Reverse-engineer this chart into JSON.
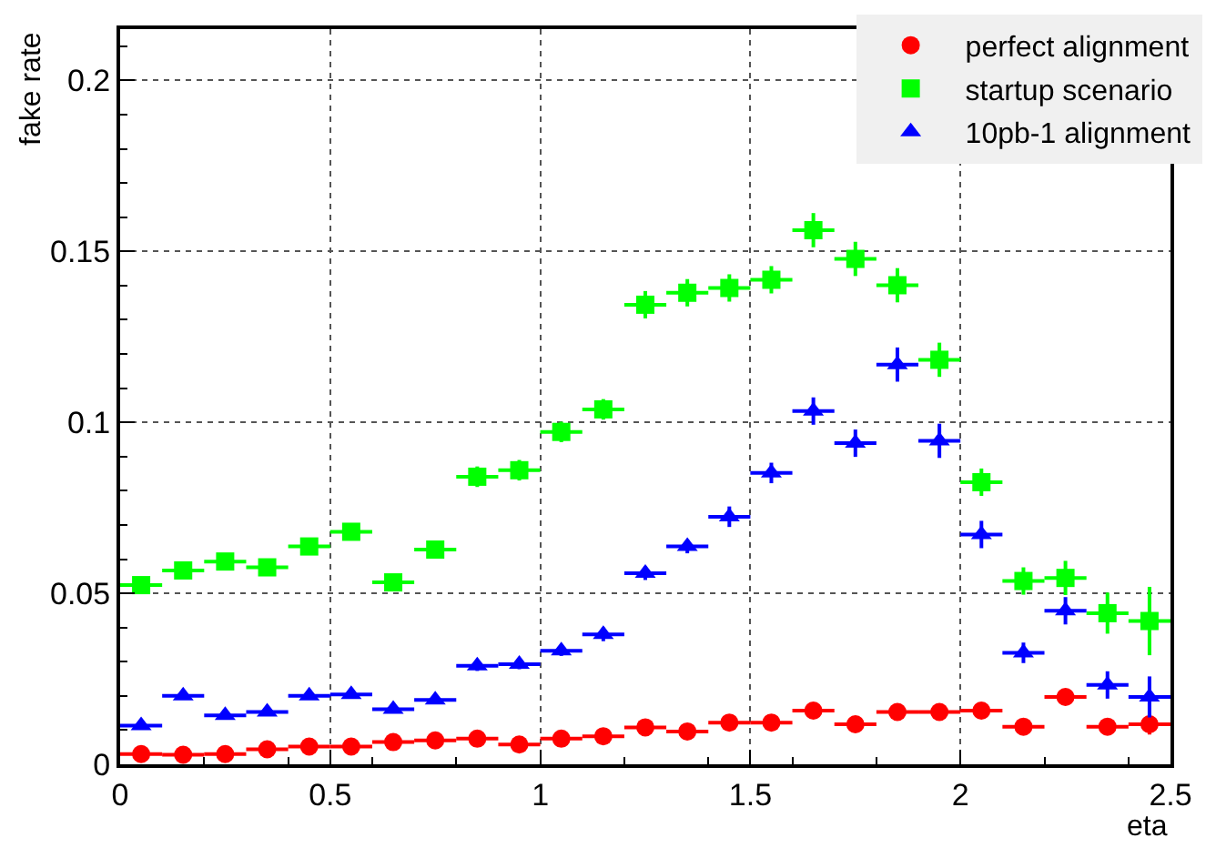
{
  "chart_data": {
    "type": "scatter",
    "xlabel": "eta",
    "ylabel": "fake rate",
    "x": [
      0.05,
      0.15,
      0.25,
      0.35,
      0.45,
      0.55,
      0.65,
      0.75,
      0.85,
      0.95,
      1.05,
      1.15,
      1.25,
      1.35,
      1.45,
      1.55,
      1.65,
      1.75,
      1.85,
      1.95,
      2.05,
      2.15,
      2.25,
      2.35,
      2.45
    ],
    "series": [
      {
        "name": "perfect alignment",
        "color": "#ff0000",
        "marker": "circle",
        "values": [
          0.003,
          0.0028,
          0.003,
          0.0044,
          0.0052,
          0.0052,
          0.0065,
          0.007,
          0.0075,
          0.0058,
          0.0075,
          0.0082,
          0.0108,
          0.0096,
          0.0122,
          0.0122,
          0.0157,
          0.0117,
          0.0153,
          0.0153,
          0.0157,
          0.011,
          0.0197,
          0.011,
          0.0117
        ],
        "errors": [
          0.001,
          0.001,
          0.001,
          0.001,
          0.001,
          0.001,
          0.001,
          0.001,
          0.001,
          0.001,
          0.001,
          0.001,
          0.001,
          0.001,
          0.001,
          0.001,
          0.001,
          0.001,
          0.001,
          0.001,
          0.001,
          0.001,
          0.002,
          0.001,
          0.003
        ],
        "xerrors": [
          0.05,
          0.05,
          0.05,
          0.05,
          0.05,
          0.05,
          0.05,
          0.05,
          0.05,
          0.05,
          0.05,
          0.05,
          0.05,
          0.05,
          0.05,
          0.05,
          0.05,
          0.05,
          0.05,
          0.05,
          0.05,
          0.05,
          0.05,
          0.05,
          0.05
        ]
      },
      {
        "name": "startup scenario",
        "color": "#00ff00",
        "marker": "square",
        "values": [
          0.0524,
          0.0567,
          0.0593,
          0.0576,
          0.0637,
          0.068,
          0.0532,
          0.0628,
          0.0841,
          0.086,
          0.0972,
          0.1038,
          0.1344,
          0.1379,
          0.1393,
          0.1417,
          0.1562,
          0.1478,
          0.1401,
          0.1183,
          0.0825,
          0.0536,
          0.0545,
          0.0442,
          0.0419
        ],
        "errors": [
          0.002,
          0.002,
          0.002,
          0.002,
          0.002,
          0.002,
          0.002,
          0.002,
          0.003,
          0.003,
          0.003,
          0.003,
          0.004,
          0.004,
          0.004,
          0.004,
          0.005,
          0.005,
          0.005,
          0.005,
          0.004,
          0.004,
          0.005,
          0.006,
          0.01
        ],
        "xerrors": [
          0.05,
          0.05,
          0.05,
          0.05,
          0.05,
          0.05,
          0.05,
          0.05,
          0.05,
          0.05,
          0.05,
          0.05,
          0.05,
          0.05,
          0.05,
          0.05,
          0.05,
          0.05,
          0.05,
          0.05,
          0.05,
          0.05,
          0.05,
          0.05,
          0.05
        ]
      },
      {
        "name": "10pb-1 alignment",
        "color": "#0000ff",
        "marker": "triangle",
        "values": [
          0.0113,
          0.02,
          0.0143,
          0.0153,
          0.02,
          0.0204,
          0.0161,
          0.0188,
          0.0288,
          0.0293,
          0.0332,
          0.038,
          0.0559,
          0.0637,
          0.0724,
          0.0852,
          0.1033,
          0.0939,
          0.1169,
          0.0946,
          0.0672,
          0.0326,
          0.0449,
          0.0232,
          0.0197
        ],
        "errors": [
          0.001,
          0.001,
          0.001,
          0.001,
          0.001,
          0.001,
          0.001,
          0.001,
          0.0015,
          0.0015,
          0.0015,
          0.002,
          0.002,
          0.002,
          0.003,
          0.003,
          0.004,
          0.004,
          0.005,
          0.005,
          0.004,
          0.003,
          0.004,
          0.004,
          0.006
        ],
        "xerrors": [
          0.05,
          0.05,
          0.05,
          0.05,
          0.05,
          0.05,
          0.05,
          0.05,
          0.05,
          0.05,
          0.05,
          0.05,
          0.05,
          0.05,
          0.05,
          0.05,
          0.05,
          0.05,
          0.05,
          0.05,
          0.05,
          0.05,
          0.05,
          0.05,
          0.05
        ]
      }
    ],
    "xlim": [
      0,
      2.5
    ],
    "xticks": [
      0,
      0.5,
      1,
      1.5,
      2,
      2.5
    ],
    "ylim": [
      0,
      0.215
    ],
    "yticks": [
      0,
      0.05,
      0.1,
      0.15,
      0.2
    ],
    "grid": true,
    "legend": "top right"
  }
}
